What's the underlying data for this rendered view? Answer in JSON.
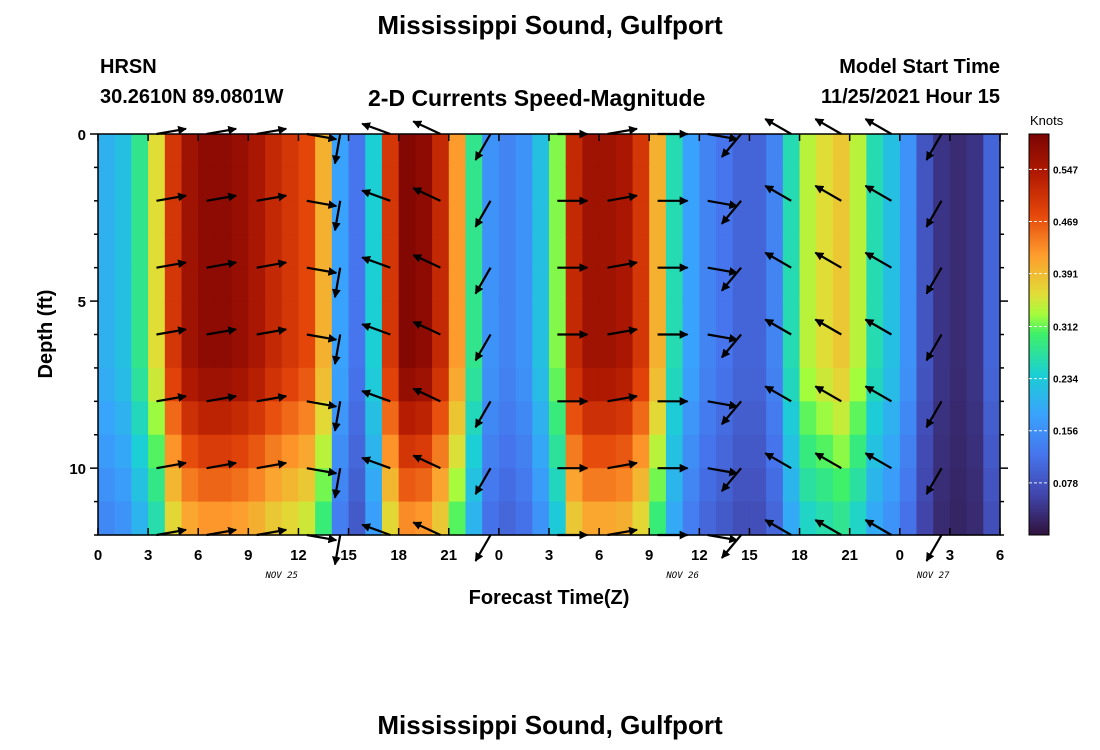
{
  "header": {
    "title": "Mississippi Sound, Gulfport",
    "station": "HRSN",
    "coords": "30.2610N  89.0801W",
    "product": "2-D Currents Speed-Magnitude",
    "model_label": "Model Start Time",
    "model_time": "11/25/2021 Hour 15",
    "footer_title": "Mississippi Sound, Gulfport"
  },
  "chart_data": {
    "type": "heatmap",
    "title": "2-D Currents Speed-Magnitude",
    "xlabel": "Forecast Time(Z)",
    "ylabel": "Depth (ft)",
    "x_tick_labels": [
      "0",
      "3",
      "6",
      "9",
      "12",
      "15",
      "18",
      "21",
      "0",
      "3",
      "6",
      "9",
      "12",
      "15",
      "18",
      "21",
      "0",
      "3",
      "6"
    ],
    "x_hours": [
      0,
      3,
      6,
      9,
      12,
      15,
      18,
      21,
      24,
      27,
      30,
      33,
      36,
      39,
      42,
      45,
      48,
      51,
      54
    ],
    "date_labels": [
      {
        "text": "NOV 25",
        "hour": 11
      },
      {
        "text": "NOV 26",
        "hour": 35
      },
      {
        "text": "NOV 27",
        "hour": 50
      }
    ],
    "xlim_hours": [
      0,
      54
    ],
    "y_tick_labels": [
      "0",
      "5",
      "10"
    ],
    "y_ticks": [
      0,
      5,
      10
    ],
    "ylim": [
      0,
      12
    ],
    "colorbar": {
      "label": "Knots",
      "ticks": [
        "0.078",
        "0.156",
        "0.234",
        "0.312",
        "0.391",
        "0.469",
        "0.547"
      ],
      "range": [
        0,
        0.6
      ]
    },
    "depth_bands": [
      0.5,
      1.5,
      2.5,
      3.5,
      4.5,
      5.5,
      6.5,
      7.5,
      8.5,
      9.5,
      10.5,
      11.5
    ],
    "speed_by_hour": [
      [
        0,
        0.2
      ],
      [
        1,
        0.22
      ],
      [
        2,
        0.28
      ],
      [
        3,
        0.36
      ],
      [
        4,
        0.5
      ],
      [
        5,
        0.56
      ],
      [
        6,
        0.58
      ],
      [
        7,
        0.58
      ],
      [
        8,
        0.57
      ],
      [
        9,
        0.55
      ],
      [
        10,
        0.52
      ],
      [
        11,
        0.5
      ],
      [
        12,
        0.48
      ],
      [
        13,
        0.4
      ],
      [
        14,
        0.18
      ],
      [
        15,
        0.12
      ],
      [
        16,
        0.24
      ],
      [
        17,
        0.5
      ],
      [
        18,
        0.59
      ],
      [
        19,
        0.58
      ],
      [
        20,
        0.52
      ],
      [
        21,
        0.42
      ],
      [
        22,
        0.28
      ],
      [
        23,
        0.16
      ],
      [
        24,
        0.14
      ],
      [
        25,
        0.16
      ],
      [
        26,
        0.22
      ],
      [
        27,
        0.32
      ],
      [
        28,
        0.52
      ],
      [
        29,
        0.56
      ],
      [
        30,
        0.56
      ],
      [
        31,
        0.55
      ],
      [
        32,
        0.5
      ],
      [
        33,
        0.4
      ],
      [
        34,
        0.26
      ],
      [
        35,
        0.18
      ],
      [
        36,
        0.14
      ],
      [
        37,
        0.12
      ],
      [
        38,
        0.1
      ],
      [
        39,
        0.1
      ],
      [
        40,
        0.14
      ],
      [
        41,
        0.26
      ],
      [
        42,
        0.34
      ],
      [
        43,
        0.36
      ],
      [
        44,
        0.38
      ],
      [
        45,
        0.34
      ],
      [
        46,
        0.26
      ],
      [
        47,
        0.22
      ],
      [
        48,
        0.16
      ],
      [
        49,
        0.08
      ],
      [
        50,
        0.04
      ],
      [
        51,
        0.03
      ],
      [
        52,
        0.04
      ],
      [
        53,
        0.1
      ],
      [
        54,
        0.16
      ]
    ],
    "vectors": {
      "depths": [
        0,
        2,
        4,
        6,
        8,
        10,
        12
      ],
      "hours": [
        3.5,
        6.5,
        9.5,
        12.5,
        14.5,
        17.5,
        20.5,
        23.5,
        27.5,
        30.5,
        33.5,
        36.5,
        38.5,
        41.5,
        44.5,
        47.5,
        50.5
      ],
      "direction_deg": [
        10,
        10,
        10,
        -10,
        -100,
        160,
        155,
        -120,
        0,
        10,
        0,
        -10,
        -130,
        150,
        150,
        150,
        -120
      ]
    }
  }
}
